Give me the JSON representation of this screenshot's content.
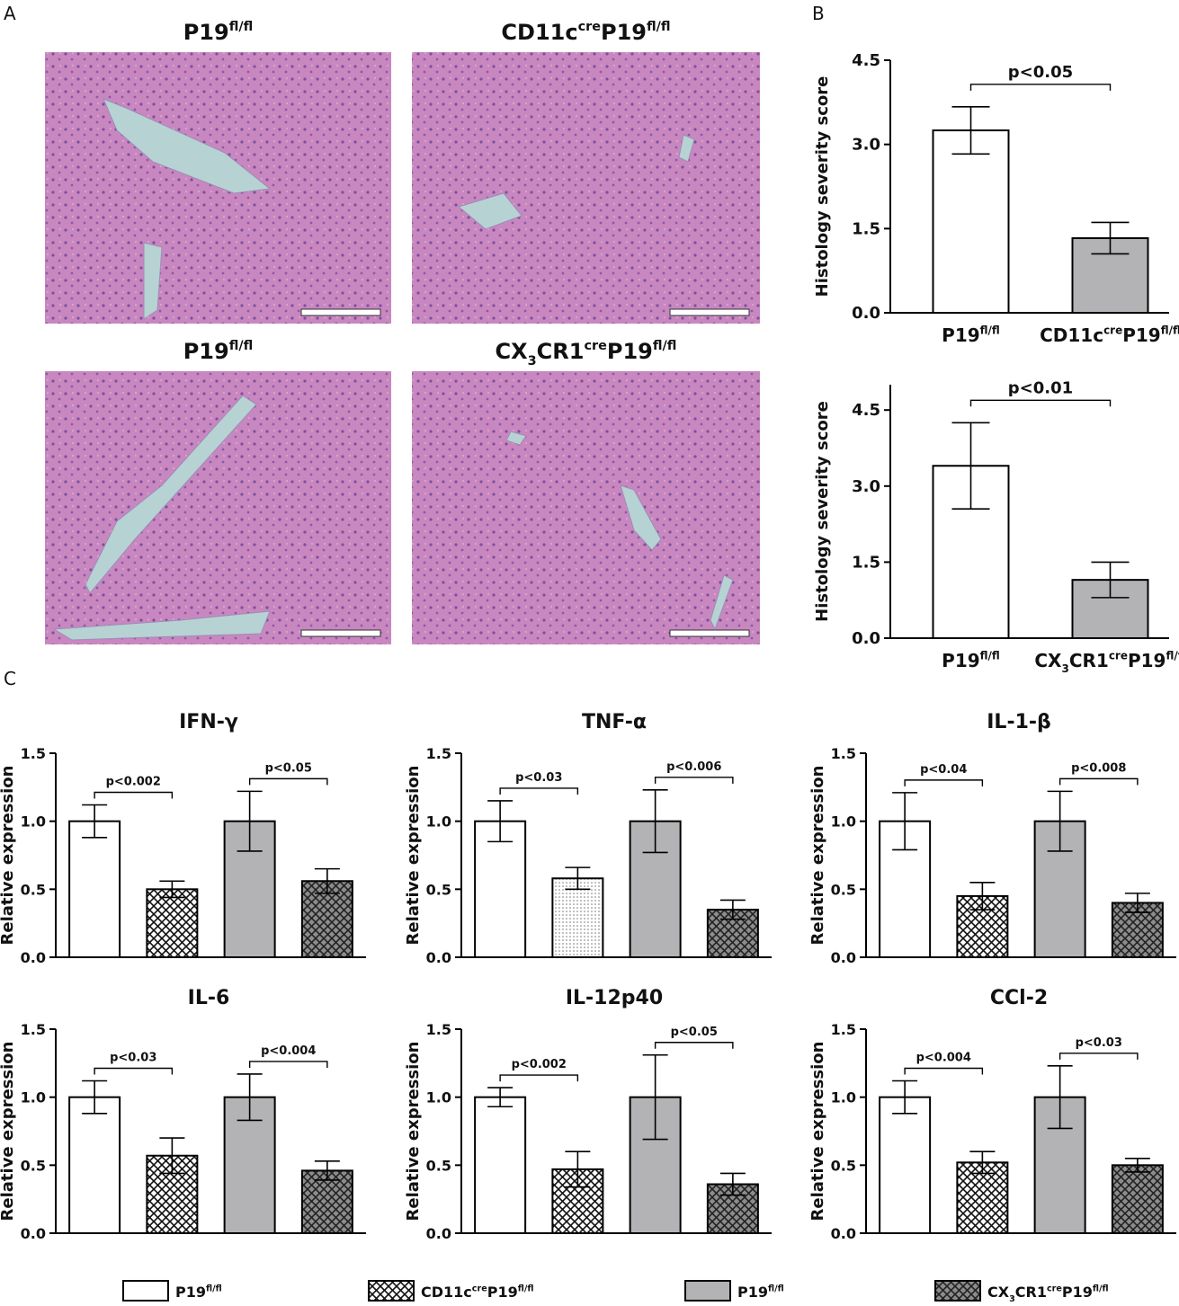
{
  "panel_labels": [
    "A",
    "B",
    "C"
  ],
  "histology": [
    {
      "title": [
        {
          "text": "P19"
        },
        {
          "text": "fl/fl",
          "pos": "sup"
        }
      ]
    },
    {
      "title": [
        {
          "text": "CD11c"
        },
        {
          "text": "cre",
          "pos": "sup"
        },
        {
          "text": "P19"
        },
        {
          "text": "fl/fl",
          "pos": "sup"
        }
      ]
    },
    {
      "title": [
        {
          "text": "P19"
        },
        {
          "text": "fl/fl",
          "pos": "sup"
        }
      ]
    },
    {
      "title": [
        {
          "text": "CX"
        },
        {
          "text": "3",
          "pos": "sub"
        },
        {
          "text": "CR1"
        },
        {
          "text": "cre",
          "pos": "sup"
        },
        {
          "text": "P19"
        },
        {
          "text": "fl/fl",
          "pos": "sup"
        }
      ]
    }
  ],
  "chart_data": [
    {
      "type": "bar",
      "ylabel": "Histology severity score",
      "categories": [
        [
          {
            "text": "P19"
          },
          {
            "text": "fl/fl",
            "pos": "sup"
          }
        ],
        [
          {
            "text": "CD11c"
          },
          {
            "text": "cre",
            "pos": "sup"
          },
          {
            "text": "P19"
          },
          {
            "text": "fl/fl",
            "pos": "sup"
          }
        ]
      ],
      "values": [
        3.25,
        1.33
      ],
      "errors": [
        0.42,
        0.28
      ],
      "colors": [
        "#ffffff",
        "#b3b3b6"
      ],
      "patterns": [
        "solid",
        "solid"
      ],
      "ylim": [
        0,
        4.5
      ],
      "yticks": [
        {
          "value": 0,
          "label": "0.0"
        },
        1.5,
        {
          "value": 3,
          "label": "3.0"
        },
        4.5
      ],
      "p_values": [
        "p<0.05"
      ]
    },
    {
      "type": "bar",
      "ylabel": "Histology severity score",
      "categories": [
        [
          {
            "text": "P19"
          },
          {
            "text": "fl/fl",
            "pos": "sup"
          }
        ],
        [
          {
            "text": "CX"
          },
          {
            "text": "3",
            "pos": "sub"
          },
          {
            "text": "CR1"
          },
          {
            "text": "cre",
            "pos": "sup"
          },
          {
            "text": "P19"
          },
          {
            "text": "fl/fl",
            "pos": "sup"
          }
        ]
      ],
      "values": [
        3.4,
        1.15
      ],
      "errors": [
        0.85,
        0.35
      ],
      "colors": [
        "#ffffff",
        "#b3b3b6"
      ],
      "patterns": [
        "solid",
        "solid"
      ],
      "ylim": [
        0,
        5
      ],
      "yticks": [
        {
          "value": 0,
          "label": "0.0"
        },
        1.5,
        {
          "value": 3,
          "label": "3.0"
        },
        4.5
      ],
      "p_values": [
        "p<0.01"
      ]
    },
    {
      "type": "bar",
      "title": "IFN-γ",
      "ylabel": "Relative expression",
      "values": [
        1.0,
        0.5,
        1.0,
        0.56
      ],
      "errors": [
        0.12,
        0.06,
        0.22,
        0.09
      ],
      "colors": [
        "#ffffff",
        "#ffffff",
        "#b3b3b6",
        "#8c8c8c"
      ],
      "patterns": [
        "solid",
        "crosshatch",
        "solid",
        "crosshatch-dark"
      ],
      "ylim": [
        0,
        1.5
      ],
      "yticks": [
        {
          "value": 0,
          "label": "0.0"
        },
        0.5,
        {
          "value": 1,
          "label": "1.0"
        },
        1.5
      ],
      "p_values": [
        "p<0.002",
        "p<0.05"
      ]
    },
    {
      "type": "bar",
      "title": "TNF-α",
      "ylabel": "Relative expression",
      "values": [
        1.0,
        0.58,
        1.0,
        0.35
      ],
      "errors": [
        0.15,
        0.08,
        0.23,
        0.07
      ],
      "colors": [
        "#ffffff",
        "#ffffff",
        "#b3b3b6",
        "#8c8c8c"
      ],
      "patterns": [
        "solid",
        "dots",
        "solid",
        "crosshatch-dark"
      ],
      "ylim": [
        0,
        1.5
      ],
      "yticks": [
        {
          "value": 0,
          "label": "0.0"
        },
        0.5,
        {
          "value": 1,
          "label": "1.0"
        },
        1.5
      ],
      "p_values": [
        "p<0.03",
        "p<0.006"
      ]
    },
    {
      "type": "bar",
      "title": "IL-1-β",
      "ylabel": "Relative expression",
      "values": [
        1.0,
        0.45,
        1.0,
        0.4
      ],
      "errors": [
        0.21,
        0.1,
        0.22,
        0.07
      ],
      "colors": [
        "#ffffff",
        "#ffffff",
        "#b3b3b6",
        "#8c8c8c"
      ],
      "patterns": [
        "solid",
        "crosshatch",
        "solid",
        "crosshatch-dark"
      ],
      "ylim": [
        0,
        1.5
      ],
      "yticks": [
        {
          "value": 0,
          "label": "0.0"
        },
        0.5,
        {
          "value": 1,
          "label": "1.0"
        },
        1.5
      ],
      "p_values": [
        "p<0.04",
        "p<0.008"
      ]
    },
    {
      "type": "bar",
      "title": "IL-6",
      "ylabel": "Relative expression",
      "values": [
        1.0,
        0.57,
        1.0,
        0.46
      ],
      "errors": [
        0.12,
        0.13,
        0.17,
        0.07
      ],
      "colors": [
        "#ffffff",
        "#ffffff",
        "#b3b3b6",
        "#8c8c8c"
      ],
      "patterns": [
        "solid",
        "crosshatch",
        "solid",
        "crosshatch-dark"
      ],
      "ylim": [
        0,
        1.5
      ],
      "yticks": [
        {
          "value": 0,
          "label": "0.0"
        },
        0.5,
        {
          "value": 1,
          "label": "1.0"
        },
        1.5
      ],
      "p_values": [
        "p<0.03",
        "p<0.004"
      ]
    },
    {
      "type": "bar",
      "title": "IL-12p40",
      "ylabel": "Relative expression",
      "values": [
        1.0,
        0.47,
        1.0,
        0.36
      ],
      "errors": [
        0.07,
        0.13,
        0.31,
        0.08
      ],
      "colors": [
        "#ffffff",
        "#ffffff",
        "#b3b3b6",
        "#8c8c8c"
      ],
      "patterns": [
        "solid",
        "crosshatch",
        "solid",
        "crosshatch-dark"
      ],
      "ylim": [
        0,
        1.5
      ],
      "yticks": [
        {
          "value": 0,
          "label": "0.0"
        },
        0.5,
        {
          "value": 1,
          "label": "1.0"
        },
        1.5
      ],
      "p_values": [
        "p<0.002",
        "p<0.05"
      ]
    },
    {
      "type": "bar",
      "title": "CCl-2",
      "ylabel": "Relative expression",
      "values": [
        1.0,
        0.52,
        1.0,
        0.5
      ],
      "errors": [
        0.12,
        0.08,
        0.23,
        0.05
      ],
      "colors": [
        "#ffffff",
        "#ffffff",
        "#b3b3b6",
        "#8c8c8c"
      ],
      "patterns": [
        "solid",
        "crosshatch",
        "solid",
        "crosshatch-dark"
      ],
      "ylim": [
        0,
        1.5
      ],
      "yticks": [
        {
          "value": 0,
          "label": "0.0"
        },
        0.5,
        {
          "value": 1,
          "label": "1.0"
        },
        1.5
      ],
      "p_values": [
        "p<0.004",
        "p<0.03"
      ]
    }
  ],
  "legend": [
    {
      "label": [
        {
          "text": "P19"
        },
        {
          "text": "fl/fl",
          "pos": "sup"
        }
      ],
      "color": "#ffffff",
      "pattern": "solid"
    },
    {
      "label": [
        {
          "text": "CD11c"
        },
        {
          "text": "cre",
          "pos": "sup"
        },
        {
          "text": "P19"
        },
        {
          "text": "fl/fl",
          "pos": "sup"
        }
      ],
      "color": "#ffffff",
      "pattern": "crosshatch"
    },
    {
      "label": [
        {
          "text": "P19"
        },
        {
          "text": "fl/fl",
          "pos": "sup"
        }
      ],
      "color": "#b3b3b6",
      "pattern": "solid"
    },
    {
      "label": [
        {
          "text": "CX"
        },
        {
          "text": "3",
          "pos": "sub"
        },
        {
          "text": "CR1"
        },
        {
          "text": "cre",
          "pos": "sup"
        },
        {
          "text": "P19"
        },
        {
          "text": "fl/fl",
          "pos": "sup"
        }
      ],
      "color": "#8c8c8c",
      "pattern": "crosshatch-dark"
    }
  ]
}
